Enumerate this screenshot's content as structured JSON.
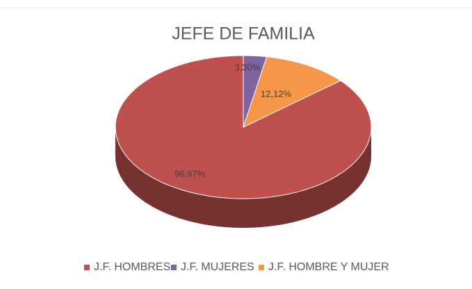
{
  "chart_data": {
    "type": "pie3d",
    "title": "JEFE DE FAMILIA",
    "categories": [
      "J.F. HOMBRES",
      "J.F. MUJERES",
      "J.F. HOMBRE Y MUJER"
    ],
    "values": [
      96.97,
      3.3,
      12.12
    ],
    "value_labels": [
      "96,97%",
      "3,30%",
      "12,12%"
    ],
    "colors": [
      "#c0504d",
      "#8064a2",
      "#f79646"
    ],
    "legend": "bottom"
  }
}
